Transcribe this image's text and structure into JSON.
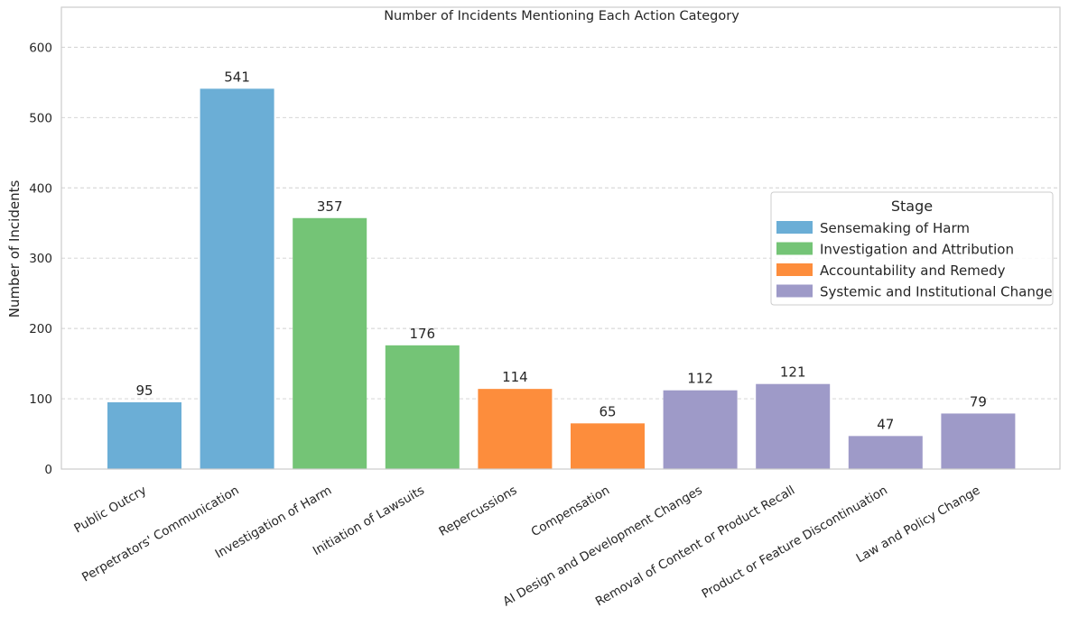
{
  "chart_data": {
    "type": "bar",
    "title": "Number of Incidents Mentioning Each Action Category",
    "xlabel": "",
    "ylabel": "Number of Incidents",
    "ylim": [
      0,
      630
    ],
    "yticks": [
      "0",
      "100",
      "200",
      "300",
      "400",
      "500",
      "600"
    ],
    "grid": true,
    "legend_placement": "center-right",
    "legend_title": "Stage",
    "categories": [
      "Public Outcry",
      "Perpetrators' Communication",
      "Investigation of Harm",
      "Initiation of Lawsuits",
      "Repercussions",
      "Compensation",
      "AI Design and Development Changes",
      "Removal of Content or Product Recall",
      "Product or Feature Discontinuation",
      "Law and Policy Change"
    ],
    "values": [
      95,
      541,
      357,
      176,
      114,
      65,
      112,
      121,
      47,
      79
    ],
    "stage_of_bar": [
      0,
      0,
      1,
      1,
      2,
      2,
      3,
      3,
      3,
      3
    ],
    "stages": [
      {
        "name": "Sensemaking of Harm",
        "color": "#6baed6"
      },
      {
        "name": "Investigation and Attribution",
        "color": "#74c476"
      },
      {
        "name": "Accountability and Remedy",
        "color": "#fd8d3c"
      },
      {
        "name": "Systemic and Institutional Change",
        "color": "#9e9ac8"
      }
    ]
  }
}
